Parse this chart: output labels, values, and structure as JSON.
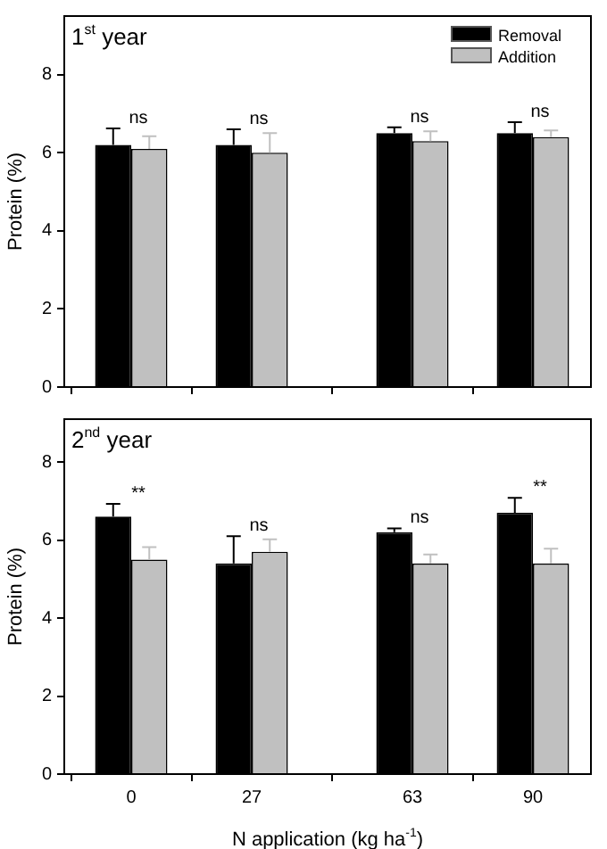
{
  "chart_data": [
    {
      "type": "bar",
      "title": "1$^{st}$ year",
      "ylabel": "Protein (%)",
      "x": [
        0,
        27,
        63,
        90
      ],
      "xlim": [
        -15,
        103
      ],
      "xticks": [
        0,
        27,
        63,
        90
      ],
      "ylim": [
        0,
        9.5
      ],
      "yticks": [
        0,
        2,
        4,
        6,
        8
      ],
      "tick_labels": "y",
      "grid": false,
      "legend": "top right",
      "series": [
        {
          "name": "Removal",
          "color": "#000000",
          "values": [
            6.2,
            6.2,
            6.5,
            6.5
          ],
          "errors": [
            0.42,
            0.4,
            0.15,
            0.28
          ]
        },
        {
          "name": "Addition",
          "color": "#c0c0c0",
          "values": [
            6.1,
            6.0,
            6.3,
            6.4
          ],
          "errors": [
            0.32,
            0.5,
            0.25,
            0.17
          ]
        }
      ],
      "annotations": [
        "ns",
        "ns",
        "ns",
        "ns"
      ]
    },
    {
      "type": "bar",
      "title": "2$^{nd}$ year",
      "ylabel": "Protein (%)",
      "xlabel": "N application (kg ha$^{-1}$)",
      "x": [
        0,
        27,
        63,
        90
      ],
      "xlim": [
        -15,
        103
      ],
      "xticks": [
        0,
        27,
        63,
        90
      ],
      "ylim": [
        0,
        9.1
      ],
      "yticks": [
        0,
        2,
        4,
        6,
        8
      ],
      "grid": false,
      "series": [
        {
          "color": "#000000",
          "values": [
            6.6,
            5.4,
            6.2,
            6.7
          ],
          "errors": [
            0.33,
            0.7,
            0.1,
            0.38
          ]
        },
        {
          "color": "#c0c0c0",
          "values": [
            5.5,
            5.7,
            5.4,
            5.4
          ],
          "errors": [
            0.32,
            0.32,
            0.23,
            0.38
          ]
        }
      ],
      "annotations": [
        "**",
        "ns",
        "ns",
        "**"
      ]
    }
  ]
}
